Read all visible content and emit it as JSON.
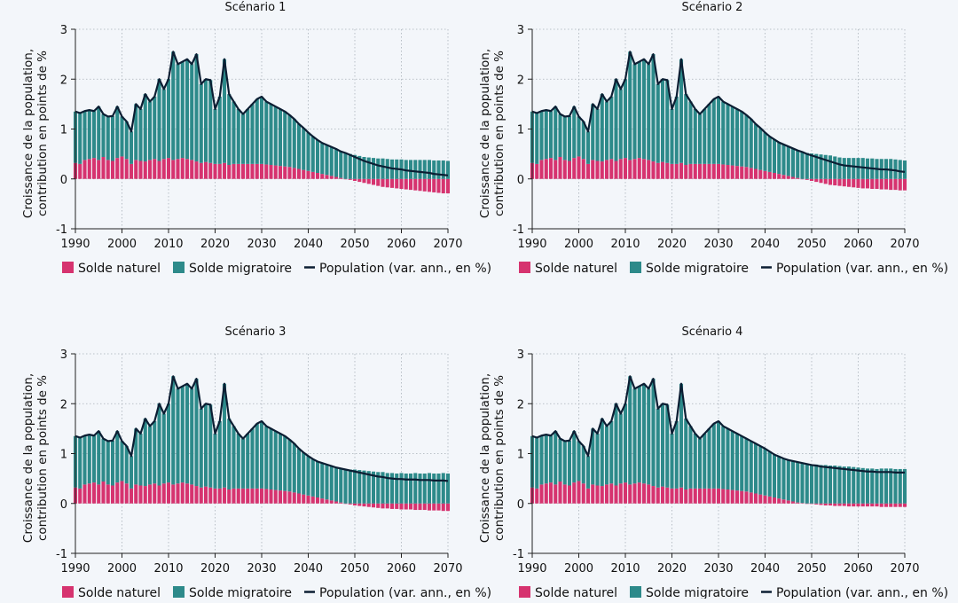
{
  "colors": {
    "background": "#f3f6fa",
    "natural": "#d6336f",
    "migration": "#2d8a8a",
    "population_line": "#0c1e33",
    "grid": "#a8b0b8"
  },
  "chart_data": [
    {
      "type": "bar",
      "title": "Scénario 1",
      "ylabel_lines": [
        "Croissance de la population,",
        "contribution en points de %"
      ],
      "xlabel": "",
      "xlim": [
        1990,
        2070
      ],
      "ylim": [
        -1,
        3
      ],
      "xticks": [
        1990,
        2000,
        2010,
        2020,
        2030,
        2040,
        2050,
        2060,
        2070
      ],
      "yticks": [
        -1,
        0,
        1,
        2,
        3
      ],
      "grid": true,
      "stacked": true,
      "legend_position": "bottom",
      "series": [
        {
          "name": "Solde naturel",
          "color": "#d6336f"
        },
        {
          "name": "Solde migratoire",
          "color": "#2d8a8a"
        },
        {
          "name": "Population (var. ann., en %)",
          "color": "#0c1e33",
          "line": true
        }
      ],
      "x_start": 1990,
      "natural": [
        0.32,
        0.3,
        0.38,
        0.4,
        0.42,
        0.38,
        0.44,
        0.38,
        0.36,
        0.42,
        0.45,
        0.4,
        0.3,
        0.38,
        0.36,
        0.35,
        0.38,
        0.4,
        0.36,
        0.4,
        0.42,
        0.38,
        0.4,
        0.42,
        0.4,
        0.38,
        0.35,
        0.32,
        0.34,
        0.32,
        0.3,
        0.3,
        0.32,
        0.28,
        0.3,
        0.3,
        0.3,
        0.3,
        0.3,
        0.3,
        0.3,
        0.29,
        0.28,
        0.27,
        0.26,
        0.25,
        0.24,
        0.22,
        0.2,
        0.18,
        0.16,
        0.14,
        0.12,
        0.1,
        0.08,
        0.06,
        0.04,
        0.02,
        0.0,
        -0.02,
        -0.04,
        -0.06,
        -0.08,
        -0.1,
        -0.12,
        -0.14,
        -0.16,
        -0.17,
        -0.18,
        -0.19,
        -0.2,
        -0.21,
        -0.22,
        -0.23,
        -0.24,
        -0.25,
        -0.26,
        -0.27,
        -0.28,
        -0.29,
        -0.29
      ],
      "total": [
        1.35,
        1.32,
        1.36,
        1.38,
        1.36,
        1.45,
        1.3,
        1.25,
        1.26,
        1.45,
        1.25,
        1.15,
        0.95,
        1.5,
        1.4,
        1.7,
        1.55,
        1.65,
        2.0,
        1.8,
        2.0,
        2.55,
        2.3,
        2.35,
        2.4,
        2.3,
        2.5,
        1.9,
        2.0,
        1.98,
        1.4,
        1.65,
        2.4,
        1.7,
        1.55,
        1.4,
        1.3,
        1.4,
        1.5,
        1.6,
        1.65,
        1.55,
        1.5,
        1.45,
        1.4,
        1.35,
        1.28,
        1.2,
        1.1,
        1.02,
        0.93,
        0.85,
        0.78,
        0.72,
        0.68,
        0.64,
        0.6,
        0.55,
        0.52,
        0.48,
        0.44,
        0.4,
        0.36,
        0.33,
        0.3,
        0.27,
        0.25,
        0.23,
        0.21,
        0.2,
        0.19,
        0.17,
        0.16,
        0.15,
        0.14,
        0.13,
        0.12,
        0.1,
        0.09,
        0.08,
        0.07
      ]
    },
    {
      "type": "bar",
      "title": "Scénario 2",
      "ylabel_lines": [
        "Croissance de la population,",
        "contribution en points de %"
      ],
      "xlabel": "",
      "xlim": [
        1990,
        2070
      ],
      "ylim": [
        -1,
        3
      ],
      "xticks": [
        1990,
        2000,
        2010,
        2020,
        2030,
        2040,
        2050,
        2060,
        2070
      ],
      "yticks": [
        -1,
        0,
        1,
        2,
        3
      ],
      "grid": true,
      "stacked": true,
      "legend_position": "bottom",
      "series": [
        {
          "name": "Solde naturel",
          "color": "#d6336f"
        },
        {
          "name": "Solde migratoire",
          "color": "#2d8a8a"
        },
        {
          "name": "Population (var. ann., en %)",
          "color": "#0c1e33",
          "line": true
        }
      ],
      "x_start": 1990,
      "natural": [
        0.32,
        0.3,
        0.38,
        0.4,
        0.42,
        0.38,
        0.44,
        0.38,
        0.36,
        0.42,
        0.45,
        0.4,
        0.3,
        0.38,
        0.36,
        0.35,
        0.38,
        0.4,
        0.36,
        0.4,
        0.42,
        0.38,
        0.4,
        0.42,
        0.4,
        0.38,
        0.35,
        0.32,
        0.34,
        0.32,
        0.3,
        0.3,
        0.32,
        0.28,
        0.3,
        0.3,
        0.3,
        0.3,
        0.3,
        0.3,
        0.3,
        0.29,
        0.28,
        0.27,
        0.26,
        0.25,
        0.24,
        0.22,
        0.2,
        0.18,
        0.16,
        0.14,
        0.12,
        0.1,
        0.08,
        0.06,
        0.04,
        0.02,
        0.0,
        -0.02,
        -0.04,
        -0.06,
        -0.08,
        -0.1,
        -0.12,
        -0.13,
        -0.14,
        -0.15,
        -0.16,
        -0.17,
        -0.18,
        -0.19,
        -0.19,
        -0.2,
        -0.2,
        -0.21,
        -0.21,
        -0.22,
        -0.22,
        -0.23,
        -0.23
      ],
      "total": [
        1.35,
        1.32,
        1.36,
        1.38,
        1.36,
        1.45,
        1.3,
        1.25,
        1.26,
        1.45,
        1.25,
        1.15,
        0.95,
        1.5,
        1.4,
        1.7,
        1.55,
        1.65,
        2.0,
        1.8,
        2.0,
        2.55,
        2.3,
        2.35,
        2.4,
        2.3,
        2.5,
        1.9,
        2.0,
        1.98,
        1.4,
        1.65,
        2.4,
        1.7,
        1.55,
        1.4,
        1.3,
        1.4,
        1.5,
        1.6,
        1.65,
        1.55,
        1.5,
        1.45,
        1.4,
        1.35,
        1.28,
        1.2,
        1.1,
        1.02,
        0.93,
        0.85,
        0.79,
        0.73,
        0.69,
        0.65,
        0.61,
        0.57,
        0.54,
        0.5,
        0.47,
        0.44,
        0.41,
        0.38,
        0.35,
        0.32,
        0.29,
        0.27,
        0.26,
        0.25,
        0.24,
        0.23,
        0.22,
        0.21,
        0.2,
        0.19,
        0.19,
        0.18,
        0.17,
        0.15,
        0.14
      ]
    },
    {
      "type": "bar",
      "title": "Scénario 3",
      "ylabel_lines": [
        "Croissance de la population,",
        "contribution en points de %"
      ],
      "xlabel": "",
      "xlim": [
        1990,
        2070
      ],
      "ylim": [
        -1,
        3
      ],
      "xticks": [
        1990,
        2000,
        2010,
        2020,
        2030,
        2040,
        2050,
        2060,
        2070
      ],
      "yticks": [
        -1,
        0,
        1,
        2,
        3
      ],
      "grid": true,
      "stacked": true,
      "legend_position": "bottom",
      "series": [
        {
          "name": "Solde naturel",
          "color": "#d6336f"
        },
        {
          "name": "Solde migratoire",
          "color": "#2d8a8a"
        },
        {
          "name": "Population (var. ann., en %)",
          "color": "#0c1e33",
          "line": true
        }
      ],
      "x_start": 1990,
      "natural": [
        0.32,
        0.3,
        0.38,
        0.4,
        0.42,
        0.38,
        0.44,
        0.38,
        0.36,
        0.42,
        0.45,
        0.4,
        0.3,
        0.38,
        0.36,
        0.35,
        0.38,
        0.4,
        0.36,
        0.4,
        0.42,
        0.38,
        0.4,
        0.42,
        0.4,
        0.38,
        0.35,
        0.32,
        0.34,
        0.32,
        0.3,
        0.3,
        0.32,
        0.28,
        0.3,
        0.3,
        0.3,
        0.3,
        0.3,
        0.3,
        0.3,
        0.29,
        0.28,
        0.27,
        0.26,
        0.25,
        0.24,
        0.22,
        0.2,
        0.18,
        0.16,
        0.14,
        0.12,
        0.1,
        0.08,
        0.06,
        0.04,
        0.02,
        0.0,
        -0.02,
        -0.04,
        -0.05,
        -0.06,
        -0.07,
        -0.08,
        -0.09,
        -0.1,
        -0.1,
        -0.11,
        -0.11,
        -0.12,
        -0.12,
        -0.12,
        -0.13,
        -0.13,
        -0.13,
        -0.14,
        -0.14,
        -0.14,
        -0.15,
        -0.15
      ],
      "total": [
        1.35,
        1.32,
        1.36,
        1.38,
        1.36,
        1.45,
        1.3,
        1.25,
        1.26,
        1.45,
        1.25,
        1.15,
        0.95,
        1.5,
        1.4,
        1.7,
        1.55,
        1.65,
        2.0,
        1.8,
        2.0,
        2.55,
        2.3,
        2.35,
        2.4,
        2.3,
        2.5,
        1.9,
        2.0,
        1.98,
        1.4,
        1.65,
        2.4,
        1.7,
        1.55,
        1.4,
        1.3,
        1.4,
        1.5,
        1.6,
        1.65,
        1.55,
        1.5,
        1.45,
        1.4,
        1.35,
        1.28,
        1.2,
        1.1,
        1.02,
        0.95,
        0.89,
        0.84,
        0.81,
        0.78,
        0.75,
        0.72,
        0.7,
        0.68,
        0.66,
        0.64,
        0.62,
        0.6,
        0.58,
        0.56,
        0.54,
        0.53,
        0.51,
        0.5,
        0.49,
        0.49,
        0.48,
        0.48,
        0.48,
        0.47,
        0.47,
        0.47,
        0.46,
        0.46,
        0.46,
        0.45
      ]
    },
    {
      "type": "bar",
      "title": "Scénario 4",
      "ylabel_lines": [
        "Croissance de la population,",
        "contribution en points de %"
      ],
      "xlabel": "",
      "xlim": [
        1990,
        2070
      ],
      "ylim": [
        -1,
        3
      ],
      "xticks": [
        1990,
        2000,
        2010,
        2020,
        2030,
        2040,
        2050,
        2060,
        2070
      ],
      "yticks": [
        -1,
        0,
        1,
        2,
        3
      ],
      "grid": true,
      "stacked": true,
      "legend_position": "bottom",
      "series": [
        {
          "name": "Solde naturel",
          "color": "#d6336f"
        },
        {
          "name": "Solde migratoire",
          "color": "#2d8a8a"
        },
        {
          "name": "Population (var. ann., en %)",
          "color": "#0c1e33",
          "line": true
        }
      ],
      "x_start": 1990,
      "natural": [
        0.32,
        0.3,
        0.38,
        0.4,
        0.42,
        0.38,
        0.44,
        0.38,
        0.36,
        0.42,
        0.45,
        0.4,
        0.3,
        0.38,
        0.36,
        0.35,
        0.38,
        0.4,
        0.36,
        0.4,
        0.42,
        0.38,
        0.4,
        0.42,
        0.4,
        0.38,
        0.35,
        0.32,
        0.34,
        0.32,
        0.3,
        0.3,
        0.32,
        0.28,
        0.3,
        0.3,
        0.3,
        0.3,
        0.3,
        0.3,
        0.3,
        0.29,
        0.28,
        0.27,
        0.26,
        0.25,
        0.24,
        0.22,
        0.2,
        0.18,
        0.16,
        0.14,
        0.12,
        0.1,
        0.08,
        0.06,
        0.04,
        0.02,
        0.01,
        0.0,
        -0.01,
        -0.02,
        -0.03,
        -0.04,
        -0.04,
        -0.05,
        -0.05,
        -0.05,
        -0.06,
        -0.06,
        -0.06,
        -0.06,
        -0.06,
        -0.06,
        -0.06,
        -0.07,
        -0.07,
        -0.07,
        -0.07,
        -0.07,
        -0.07
      ],
      "total": [
        1.35,
        1.32,
        1.36,
        1.38,
        1.36,
        1.45,
        1.3,
        1.25,
        1.26,
        1.45,
        1.25,
        1.15,
        0.95,
        1.5,
        1.4,
        1.7,
        1.55,
        1.65,
        2.0,
        1.8,
        2.0,
        2.55,
        2.3,
        2.35,
        2.4,
        2.3,
        2.5,
        1.9,
        2.0,
        1.98,
        1.4,
        1.65,
        2.4,
        1.7,
        1.55,
        1.4,
        1.3,
        1.4,
        1.5,
        1.6,
        1.65,
        1.55,
        1.5,
        1.45,
        1.4,
        1.35,
        1.3,
        1.25,
        1.2,
        1.15,
        1.1,
        1.04,
        0.98,
        0.94,
        0.9,
        0.87,
        0.85,
        0.83,
        0.81,
        0.79,
        0.77,
        0.76,
        0.74,
        0.73,
        0.72,
        0.71,
        0.7,
        0.69,
        0.68,
        0.67,
        0.66,
        0.65,
        0.64,
        0.64,
        0.63,
        0.63,
        0.63,
        0.63,
        0.62,
        0.62,
        0.62
      ]
    }
  ]
}
